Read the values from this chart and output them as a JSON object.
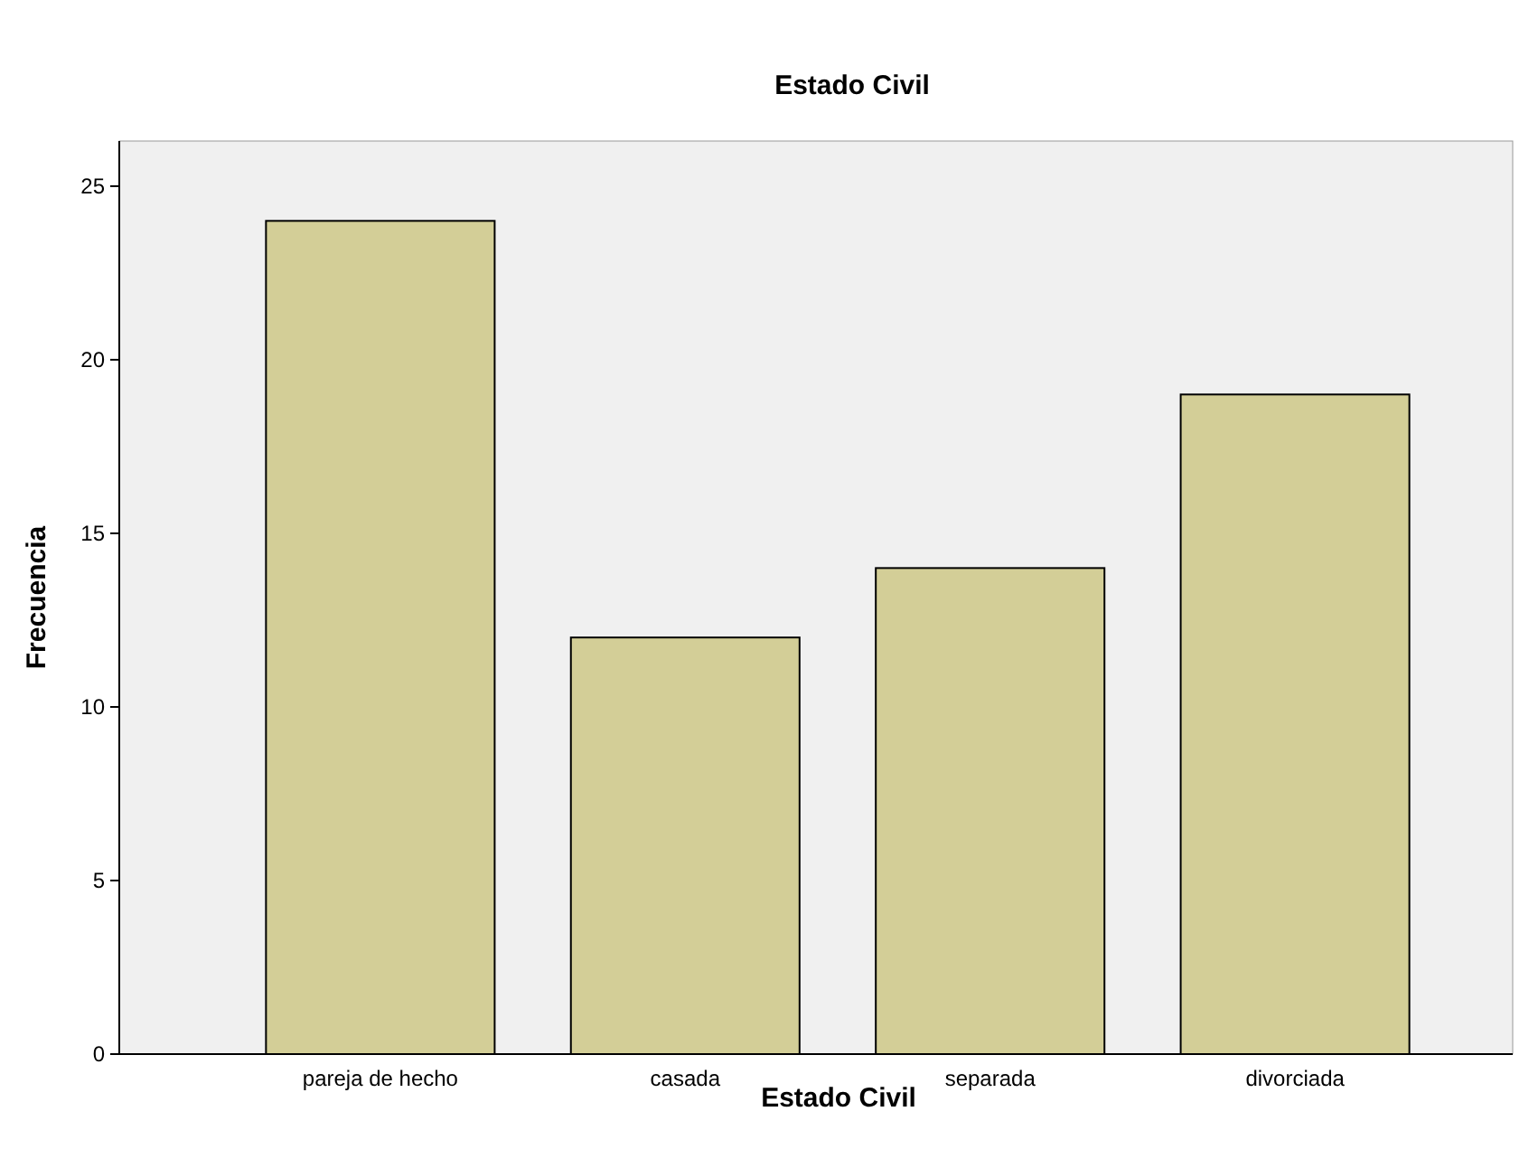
{
  "chart_data": {
    "type": "bar",
    "title": "Estado Civil",
    "xlabel": "Estado Civil",
    "ylabel": "Frecuencia",
    "categories": [
      "pareja de hecho",
      "casada",
      "separada",
      "divorciada"
    ],
    "values": [
      24,
      12,
      14,
      19
    ],
    "color": "#d3ce97",
    "ylim": [
      0,
      26.3
    ],
    "yticks": [
      0,
      5,
      10,
      15,
      20,
      25
    ],
    "grid": false
  }
}
